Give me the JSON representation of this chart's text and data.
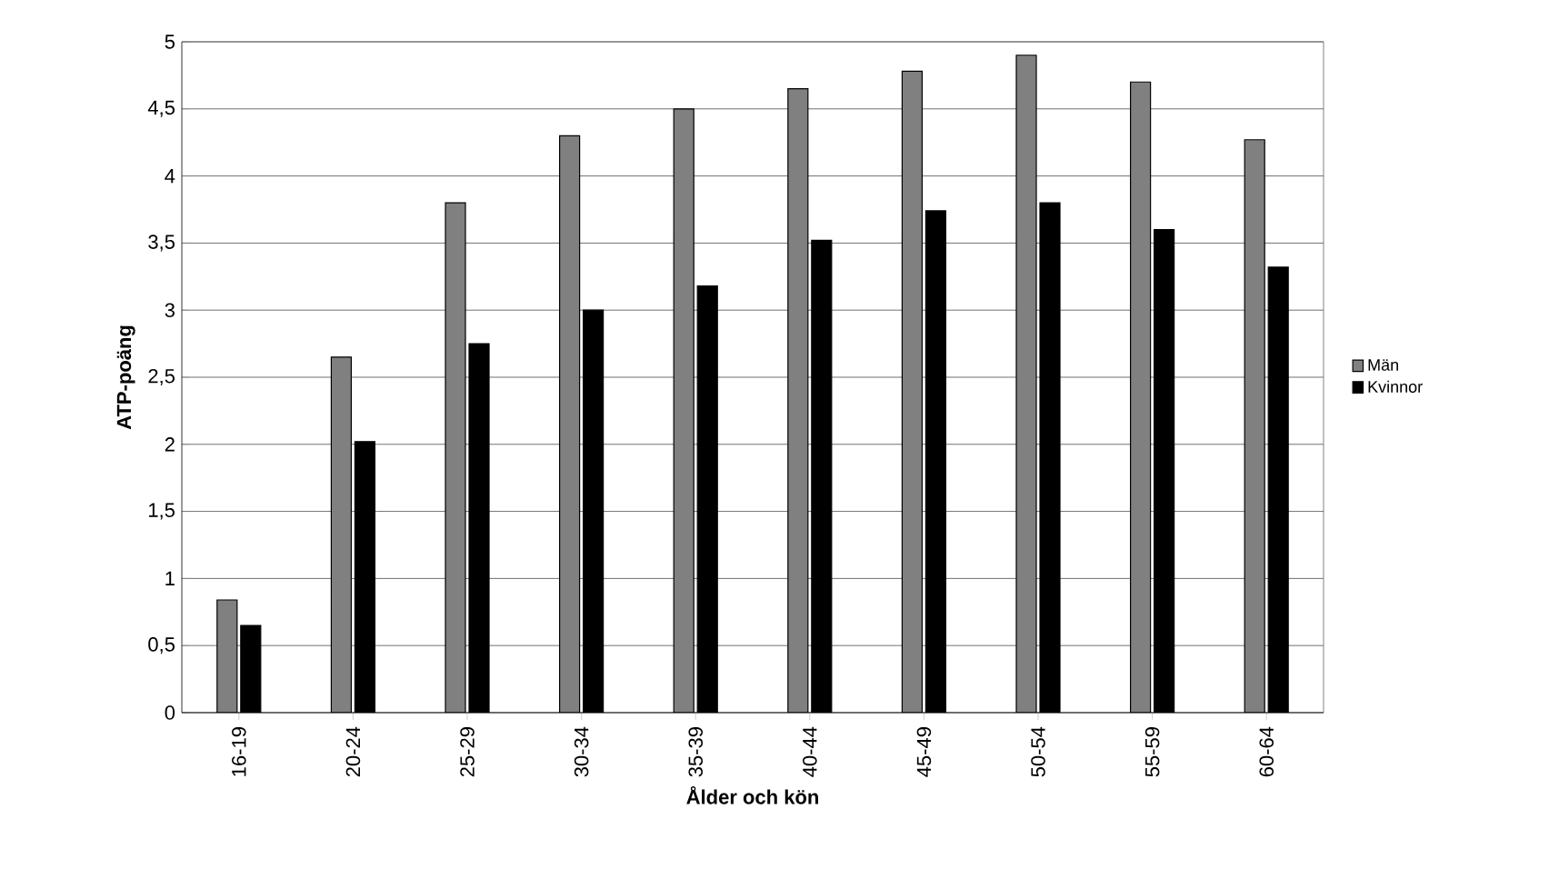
{
  "chart_data": {
    "type": "bar",
    "xlabel": "Ålder och kön",
    "ylabel": "ATP-poäng",
    "categories": [
      "16-19",
      "20-24",
      "25-29",
      "30-34",
      "35-39",
      "40-44",
      "45-49",
      "50-54",
      "55-59",
      "60-64"
    ],
    "series": [
      {
        "name": "Män",
        "color": "#808080",
        "values": [
          0.84,
          2.65,
          3.8,
          4.3,
          4.5,
          4.65,
          4.78,
          4.9,
          4.7,
          4.27
        ]
      },
      {
        "name": "Kvinnor",
        "color": "#000000",
        "values": [
          0.65,
          2.02,
          2.75,
          3.0,
          3.18,
          3.52,
          3.74,
          3.8,
          3.6,
          3.32
        ]
      }
    ],
    "ylim": [
      0,
      5
    ],
    "yticks": [
      {
        "value": 0,
        "label": "0"
      },
      {
        "value": 0.5,
        "label": "0,5"
      },
      {
        "value": 1,
        "label": "1"
      },
      {
        "value": 1.5,
        "label": "1,5"
      },
      {
        "value": 2,
        "label": "2"
      },
      {
        "value": 2.5,
        "label": "2,5"
      },
      {
        "value": 3,
        "label": "3"
      },
      {
        "value": 3.5,
        "label": "3,5"
      },
      {
        "value": 4,
        "label": "4"
      },
      {
        "value": 4.5,
        "label": "4,5"
      },
      {
        "value": 5,
        "label": "5"
      }
    ],
    "grid": "y",
    "legend": "right"
  }
}
